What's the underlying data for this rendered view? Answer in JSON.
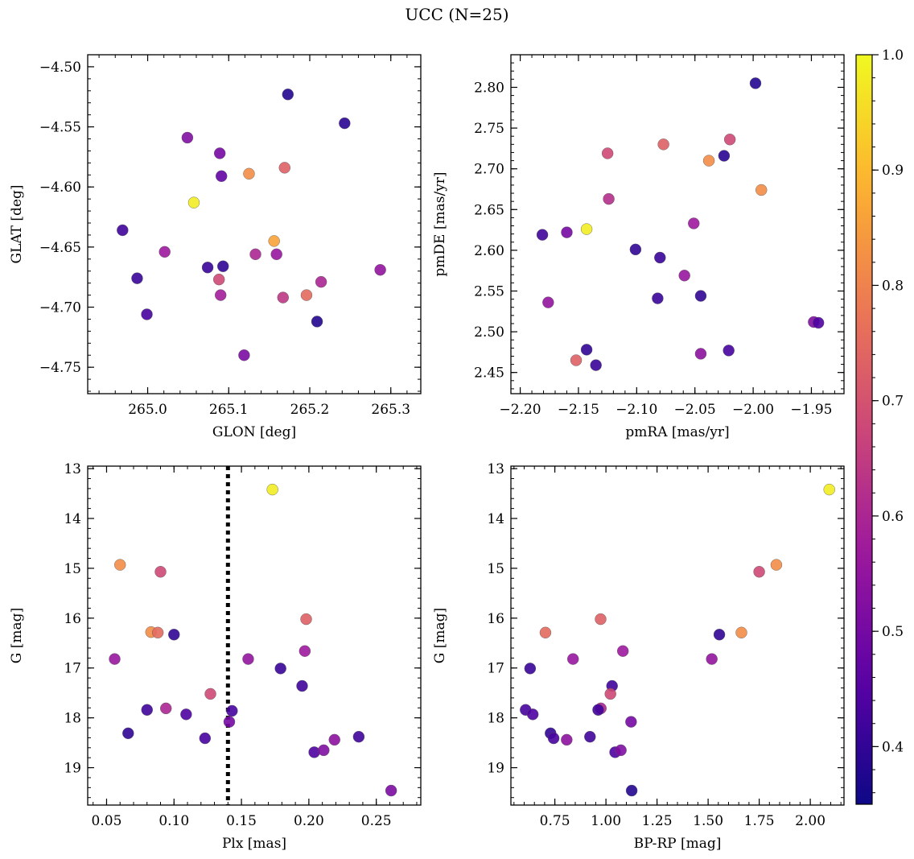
{
  "figure": {
    "suptitle": "UCC (N=25)"
  },
  "colorbar": {
    "min": 0.35,
    "max": 1.0,
    "ticks": [
      0.4,
      0.5,
      0.6,
      0.7,
      0.8,
      0.9,
      1.0
    ],
    "tick_labels": [
      "0.4",
      "0.5",
      "0.6",
      "0.7",
      "0.8",
      "0.9",
      "1.0"
    ],
    "colormap": "plasma",
    "colormap_stops": [
      "#0d0887",
      "#5c01a6",
      "#9c179e",
      "#cc4778",
      "#ed7953",
      "#fdb42f",
      "#f0f921"
    ]
  },
  "chart_data": [
    {
      "type": "scatter",
      "id": "glon-glat",
      "xlabel": "GLON [deg]",
      "ylabel": "GLAT [deg]",
      "xlim": [
        264.926,
        265.337
      ],
      "ylim": [
        -4.772,
        -4.49
      ],
      "xticks": [
        265.0,
        265.1,
        265.2,
        265.3
      ],
      "xtick_labels": [
        "265.0",
        "265.1",
        "265.2",
        "265.3"
      ],
      "yticks": [
        -4.5,
        -4.55,
        -4.6,
        -4.65,
        -4.7,
        -4.75
      ],
      "ytick_labels": [
        "−4.50",
        "−4.55",
        "−4.60",
        "−4.65",
        "−4.70",
        "−4.75"
      ],
      "points": [
        {
          "x": 265.173,
          "y": -4.523,
          "c": 0.38
        },
        {
          "x": 265.243,
          "y": -4.547,
          "c": 0.39
        },
        {
          "x": 265.049,
          "y": -4.559,
          "c": 0.52
        },
        {
          "x": 265.089,
          "y": -4.572,
          "c": 0.5
        },
        {
          "x": 265.091,
          "y": -4.591,
          "c": 0.47
        },
        {
          "x": 265.125,
          "y": -4.589,
          "c": 0.82
        },
        {
          "x": 265.169,
          "y": -4.584,
          "c": 0.73
        },
        {
          "x": 265.057,
          "y": -4.613,
          "c": 0.98
        },
        {
          "x": 264.969,
          "y": -4.636,
          "c": 0.42
        },
        {
          "x": 265.021,
          "y": -4.654,
          "c": 0.57
        },
        {
          "x": 265.156,
          "y": -4.645,
          "c": 0.86
        },
        {
          "x": 265.133,
          "y": -4.656,
          "c": 0.6
        },
        {
          "x": 265.159,
          "y": -4.656,
          "c": 0.56
        },
        {
          "x": 265.074,
          "y": -4.667,
          "c": 0.41
        },
        {
          "x": 265.093,
          "y": -4.666,
          "c": 0.4
        },
        {
          "x": 264.987,
          "y": -4.676,
          "c": 0.41
        },
        {
          "x": 265.088,
          "y": -4.677,
          "c": 0.68
        },
        {
          "x": 265.214,
          "y": -4.679,
          "c": 0.6
        },
        {
          "x": 265.287,
          "y": -4.669,
          "c": 0.55
        },
        {
          "x": 265.09,
          "y": -4.69,
          "c": 0.58
        },
        {
          "x": 265.167,
          "y": -4.692,
          "c": 0.64
        },
        {
          "x": 265.196,
          "y": -4.69,
          "c": 0.75
        },
        {
          "x": 264.999,
          "y": -4.706,
          "c": 0.43
        },
        {
          "x": 265.209,
          "y": -4.712,
          "c": 0.38
        },
        {
          "x": 265.119,
          "y": -4.74,
          "c": 0.51
        }
      ]
    },
    {
      "type": "scatter",
      "id": "pmra-pmde",
      "xlabel": "pmRA [mas/yr]",
      "ylabel": "pmDE [mas/yr]",
      "xlim": [
        -2.208,
        -1.922
      ],
      "ylim": [
        2.424,
        2.84
      ],
      "xticks": [
        -2.2,
        -2.15,
        -2.1,
        -2.05,
        -2.0,
        -1.95
      ],
      "xtick_labels": [
        "−2.20",
        "−2.15",
        "−2.10",
        "−2.05",
        "−2.00",
        "−1.95"
      ],
      "yticks": [
        2.45,
        2.5,
        2.55,
        2.6,
        2.65,
        2.7,
        2.75,
        2.8
      ],
      "ytick_labels": [
        "2.45",
        "2.50",
        "2.55",
        "2.60",
        "2.65",
        "2.70",
        "2.75",
        "2.80"
      ],
      "points": [
        {
          "x": -1.998,
          "y": 2.805,
          "c": 0.38
        },
        {
          "x": -2.077,
          "y": 2.73,
          "c": 0.73
        },
        {
          "x": -2.02,
          "y": 2.736,
          "c": 0.68
        },
        {
          "x": -2.125,
          "y": 2.719,
          "c": 0.68
        },
        {
          "x": -2.038,
          "y": 2.71,
          "c": 0.82
        },
        {
          "x": -2.025,
          "y": 2.716,
          "c": 0.39
        },
        {
          "x": -1.993,
          "y": 2.674,
          "c": 0.82
        },
        {
          "x": -2.124,
          "y": 2.663,
          "c": 0.62
        },
        {
          "x": -2.143,
          "y": 2.626,
          "c": 0.98
        },
        {
          "x": -2.051,
          "y": 2.633,
          "c": 0.57
        },
        {
          "x": -2.181,
          "y": 2.619,
          "c": 0.42
        },
        {
          "x": -2.16,
          "y": 2.622,
          "c": 0.5
        },
        {
          "x": -2.101,
          "y": 2.601,
          "c": 0.4
        },
        {
          "x": -2.08,
          "y": 2.591,
          "c": 0.41
        },
        {
          "x": -2.059,
          "y": 2.569,
          "c": 0.56
        },
        {
          "x": -2.082,
          "y": 2.541,
          "c": 0.41
        },
        {
          "x": -2.045,
          "y": 2.544,
          "c": 0.4
        },
        {
          "x": -2.176,
          "y": 2.536,
          "c": 0.55
        },
        {
          "x": -1.948,
          "y": 2.512,
          "c": 0.52
        },
        {
          "x": -1.944,
          "y": 2.511,
          "c": 0.44
        },
        {
          "x": -2.143,
          "y": 2.478,
          "c": 0.4
        },
        {
          "x": -2.045,
          "y": 2.473,
          "c": 0.54
        },
        {
          "x": -2.021,
          "y": 2.477,
          "c": 0.43
        },
        {
          "x": -2.152,
          "y": 2.465,
          "c": 0.73
        },
        {
          "x": -2.135,
          "y": 2.459,
          "c": 0.41
        }
      ]
    },
    {
      "type": "scatter",
      "id": "plx-g",
      "xlabel": "Plx [mas]",
      "ylabel": "G [mag]",
      "xlim": [
        0.036,
        0.283
      ],
      "ylim": [
        19.75,
        12.95
      ],
      "y_inverted": true,
      "xticks": [
        0.05,
        0.1,
        0.15,
        0.2,
        0.25
      ],
      "xtick_labels": [
        "0.05",
        "0.10",
        "0.15",
        "0.20",
        "0.25"
      ],
      "yticks": [
        13,
        14,
        15,
        16,
        17,
        18,
        19
      ],
      "ytick_labels": [
        "13",
        "14",
        "15",
        "16",
        "17",
        "18",
        "19"
      ],
      "vline": {
        "x": 0.14,
        "style": "dotted"
      },
      "points": [
        {
          "x": 0.173,
          "y": 13.42,
          "c": 0.98
        },
        {
          "x": 0.06,
          "y": 14.93,
          "c": 0.82
        },
        {
          "x": 0.09,
          "y": 15.07,
          "c": 0.68
        },
        {
          "x": 0.198,
          "y": 16.02,
          "c": 0.73
        },
        {
          "x": 0.083,
          "y": 16.28,
          "c": 0.82
        },
        {
          "x": 0.088,
          "y": 16.29,
          "c": 0.75
        },
        {
          "x": 0.1,
          "y": 16.33,
          "c": 0.4
        },
        {
          "x": 0.197,
          "y": 16.66,
          "c": 0.57
        },
        {
          "x": 0.056,
          "y": 16.82,
          "c": 0.56
        },
        {
          "x": 0.155,
          "y": 16.82,
          "c": 0.55
        },
        {
          "x": 0.179,
          "y": 17.01,
          "c": 0.41
        },
        {
          "x": 0.195,
          "y": 17.36,
          "c": 0.42
        },
        {
          "x": 0.127,
          "y": 17.52,
          "c": 0.68
        },
        {
          "x": 0.094,
          "y": 17.81,
          "c": 0.6
        },
        {
          "x": 0.08,
          "y": 17.84,
          "c": 0.42
        },
        {
          "x": 0.143,
          "y": 17.86,
          "c": 0.43
        },
        {
          "x": 0.109,
          "y": 17.93,
          "c": 0.44
        },
        {
          "x": 0.141,
          "y": 18.08,
          "c": 0.5
        },
        {
          "x": 0.066,
          "y": 18.31,
          "c": 0.4
        },
        {
          "x": 0.123,
          "y": 18.41,
          "c": 0.43
        },
        {
          "x": 0.237,
          "y": 18.38,
          "c": 0.42
        },
        {
          "x": 0.219,
          "y": 18.44,
          "c": 0.54
        },
        {
          "x": 0.204,
          "y": 18.69,
          "c": 0.44
        },
        {
          "x": 0.211,
          "y": 18.65,
          "c": 0.52
        },
        {
          "x": 0.261,
          "y": 19.46,
          "c": 0.51
        }
      ]
    },
    {
      "type": "scatter",
      "id": "bprp-g",
      "xlabel": "BP-RP [mag]",
      "ylabel": "G [mag]",
      "xlim": [
        0.535,
        2.165
      ],
      "ylim": [
        19.75,
        12.95
      ],
      "y_inverted": true,
      "xticks": [
        0.75,
        1.0,
        1.25,
        1.5,
        1.75,
        2.0
      ],
      "xtick_labels": [
        "0.75",
        "1.00",
        "1.25",
        "1.50",
        "1.75",
        "2.00"
      ],
      "yticks": [
        13,
        14,
        15,
        16,
        17,
        18,
        19
      ],
      "ytick_labels": [
        "13",
        "14",
        "15",
        "16",
        "17",
        "18",
        "19"
      ],
      "points": [
        {
          "x": 2.093,
          "y": 13.42,
          "c": 0.98
        },
        {
          "x": 1.834,
          "y": 14.93,
          "c": 0.82
        },
        {
          "x": 1.75,
          "y": 15.07,
          "c": 0.68
        },
        {
          "x": 0.974,
          "y": 16.02,
          "c": 0.73
        },
        {
          "x": 0.704,
          "y": 16.29,
          "c": 0.75
        },
        {
          "x": 1.663,
          "y": 16.29,
          "c": 0.82
        },
        {
          "x": 1.555,
          "y": 16.33,
          "c": 0.4
        },
        {
          "x": 1.083,
          "y": 16.66,
          "c": 0.57
        },
        {
          "x": 0.839,
          "y": 16.82,
          "c": 0.56
        },
        {
          "x": 1.518,
          "y": 16.82,
          "c": 0.55
        },
        {
          "x": 0.629,
          "y": 17.01,
          "c": 0.41
        },
        {
          "x": 1.03,
          "y": 17.36,
          "c": 0.42
        },
        {
          "x": 1.022,
          "y": 17.52,
          "c": 0.68
        },
        {
          "x": 0.975,
          "y": 17.81,
          "c": 0.6
        },
        {
          "x": 0.962,
          "y": 17.84,
          "c": 0.42
        },
        {
          "x": 0.607,
          "y": 17.84,
          "c": 0.43
        },
        {
          "x": 0.642,
          "y": 17.93,
          "c": 0.44
        },
        {
          "x": 1.123,
          "y": 18.08,
          "c": 0.5
        },
        {
          "x": 0.729,
          "y": 18.31,
          "c": 0.4
        },
        {
          "x": 0.744,
          "y": 18.41,
          "c": 0.43
        },
        {
          "x": 0.922,
          "y": 18.38,
          "c": 0.42
        },
        {
          "x": 0.808,
          "y": 18.44,
          "c": 0.54
        },
        {
          "x": 1.045,
          "y": 18.69,
          "c": 0.44
        },
        {
          "x": 1.073,
          "y": 18.65,
          "c": 0.52
        },
        {
          "x": 1.126,
          "y": 19.46,
          "c": 0.38
        }
      ]
    }
  ]
}
